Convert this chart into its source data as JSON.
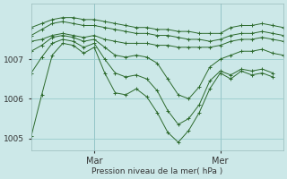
{
  "background_color": "#cce8e8",
  "grid_color": "#99cccc",
  "line_color": "#2d6a2d",
  "marker_color": "#2d6a2d",
  "xlabel": "Pression niveau de la mer( hPa )",
  "ylim": [
    1004.7,
    1008.4
  ],
  "yticks": [
    1005,
    1006,
    1007
  ],
  "xlim": [
    0,
    48
  ],
  "xtick_positions": [
    12,
    36
  ],
  "xtick_labels": [
    "Mar",
    "Mer"
  ],
  "series": [
    [
      0,
      1007.8,
      2,
      1007.9,
      4,
      1008.0,
      6,
      1008.05,
      8,
      1008.05,
      10,
      1008.0,
      12,
      1008.0,
      14,
      1007.95,
      16,
      1007.9,
      18,
      1007.85,
      20,
      1007.8,
      22,
      1007.8,
      24,
      1007.75,
      26,
      1007.75,
      28,
      1007.7,
      30,
      1007.7,
      32,
      1007.65,
      34,
      1007.65,
      36,
      1007.65,
      38,
      1007.8,
      40,
      1007.85,
      42,
      1007.85,
      44,
      1007.9,
      46,
      1007.85,
      48,
      1007.8
    ],
    [
      0,
      1007.6,
      2,
      1007.75,
      4,
      1007.9,
      6,
      1007.95,
      8,
      1007.9,
      10,
      1007.85,
      12,
      1007.85,
      14,
      1007.8,
      16,
      1007.75,
      18,
      1007.7,
      20,
      1007.65,
      22,
      1007.65,
      24,
      1007.6,
      26,
      1007.6,
      28,
      1007.55,
      30,
      1007.5,
      32,
      1007.5,
      34,
      1007.45,
      36,
      1007.5,
      38,
      1007.6,
      40,
      1007.65,
      42,
      1007.65,
      44,
      1007.7,
      46,
      1007.65,
      48,
      1007.6
    ],
    [
      0,
      1007.45,
      2,
      1007.5,
      4,
      1007.6,
      6,
      1007.65,
      8,
      1007.6,
      10,
      1007.55,
      12,
      1007.6,
      14,
      1007.5,
      16,
      1007.45,
      18,
      1007.4,
      20,
      1007.4,
      22,
      1007.4,
      24,
      1007.35,
      26,
      1007.35,
      28,
      1007.3,
      30,
      1007.3,
      32,
      1007.3,
      34,
      1007.3,
      36,
      1007.35,
      38,
      1007.45,
      40,
      1007.5,
      42,
      1007.5,
      44,
      1007.55,
      46,
      1007.5,
      48,
      1007.45
    ],
    [
      0,
      1007.2,
      2,
      1007.35,
      4,
      1007.55,
      6,
      1007.6,
      8,
      1007.55,
      10,
      1007.45,
      12,
      1007.5,
      14,
      1007.3,
      16,
      1007.1,
      18,
      1007.05,
      20,
      1007.1,
      22,
      1007.05,
      24,
      1006.9,
      26,
      1006.5,
      28,
      1006.1,
      30,
      1006.0,
      32,
      1006.3,
      34,
      1006.8,
      36,
      1007.0,
      38,
      1007.1,
      40,
      1007.2,
      42,
      1007.2,
      44,
      1007.25,
      46,
      1007.15,
      48,
      1007.1
    ],
    [
      0,
      1006.65,
      2,
      1007.05,
      4,
      1007.4,
      6,
      1007.5,
      8,
      1007.45,
      10,
      1007.3,
      12,
      1007.4,
      14,
      1007.0,
      16,
      1006.65,
      18,
      1006.55,
      20,
      1006.6,
      22,
      1006.5,
      24,
      1006.2,
      26,
      1005.7,
      28,
      1005.35,
      30,
      1005.5,
      32,
      1005.85,
      34,
      1006.45,
      36,
      1006.7,
      38,
      1006.6,
      40,
      1006.75,
      42,
      1006.7,
      44,
      1006.75,
      46,
      1006.65
    ],
    [
      0,
      1005.05,
      2,
      1006.1,
      4,
      1007.1,
      6,
      1007.4,
      8,
      1007.35,
      10,
      1007.15,
      12,
      1007.3,
      14,
      1006.65,
      16,
      1006.15,
      18,
      1006.1,
      20,
      1006.25,
      22,
      1006.05,
      24,
      1005.65,
      26,
      1005.15,
      28,
      1004.9,
      30,
      1005.2,
      32,
      1005.65,
      34,
      1006.25,
      36,
      1006.65,
      38,
      1006.5,
      40,
      1006.7,
      42,
      1006.6,
      44,
      1006.65,
      46,
      1006.55
    ]
  ]
}
